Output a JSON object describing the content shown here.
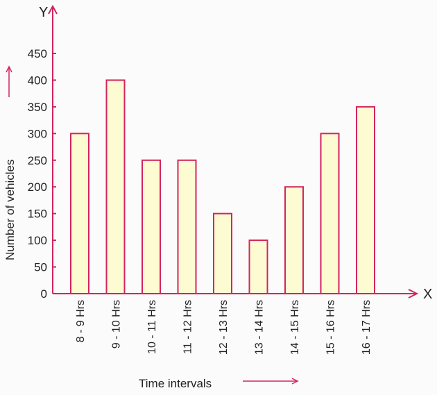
{
  "chart_data": {
    "type": "bar",
    "title": "",
    "xlabel": "Time intervals",
    "ylabel": "Number of vehicles",
    "x_axis_letter": "X",
    "y_axis_letter": "Y",
    "categories": [
      "8 - 9 Hrs",
      "9 - 10 Hrs",
      "10 - 11 Hrs",
      "11 - 12 Hrs",
      "12 - 13 Hrs",
      "13 - 14 Hrs",
      "14 - 15 Hrs",
      "15 - 16 Hrs",
      "16 - 17 Hrs"
    ],
    "values": [
      300,
      400,
      250,
      250,
      150,
      100,
      200,
      300,
      350
    ],
    "yticks": [
      0,
      50,
      100,
      150,
      200,
      250,
      300,
      350,
      400,
      450
    ],
    "ylim": [
      0,
      450
    ],
    "grid": false,
    "colors": {
      "axis": "#d3245f",
      "bar_fill": "#fdfbd2",
      "bar_stroke": "#d3245f"
    }
  }
}
